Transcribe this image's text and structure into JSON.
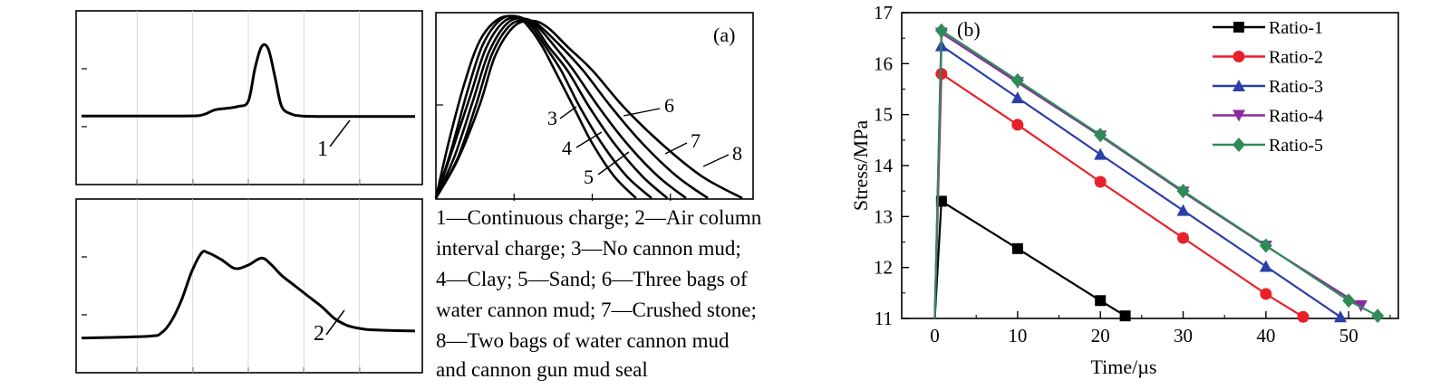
{
  "chart_data": [
    {
      "type": "line",
      "curve_label": "1",
      "xlim": [
        0,
        1
      ],
      "ylim": [
        0,
        1
      ],
      "x": [
        0.0,
        0.3,
        0.36,
        0.4,
        0.44,
        0.47,
        0.5,
        0.52,
        0.54,
        0.56,
        0.58,
        0.6,
        0.63,
        0.66,
        0.7,
        0.8,
        0.9,
        1.0
      ],
      "y": [
        0.395,
        0.395,
        0.4,
        0.43,
        0.44,
        0.45,
        0.48,
        0.67,
        0.795,
        0.78,
        0.62,
        0.45,
        0.405,
        0.395,
        0.392,
        0.392,
        0.392,
        0.392
      ]
    },
    {
      "type": "line",
      "curve_label": "2",
      "xlim": [
        0,
        1
      ],
      "ylim": [
        0,
        1
      ],
      "x": [
        0.0,
        0.2,
        0.24,
        0.27,
        0.3,
        0.33,
        0.36,
        0.38,
        0.42,
        0.46,
        0.5,
        0.54,
        0.57,
        0.6,
        0.64,
        0.68,
        0.72,
        0.76,
        0.8,
        0.85,
        0.9,
        1.0
      ],
      "y": [
        0.2,
        0.21,
        0.23,
        0.3,
        0.42,
        0.58,
        0.69,
        0.69,
        0.65,
        0.6,
        0.62,
        0.66,
        0.62,
        0.56,
        0.5,
        0.44,
        0.38,
        0.31,
        0.27,
        0.25,
        0.245,
        0.24
      ]
    },
    {
      "type": "line",
      "panel_label": "(a)",
      "xlim": [
        0,
        1
      ],
      "ylim": [
        0,
        1
      ],
      "series": [
        {
          "name": "3",
          "x": [
            0.0,
            0.04,
            0.09,
            0.14,
            0.2,
            0.26,
            0.3,
            0.34,
            0.38,
            0.44,
            0.5,
            0.57,
            0.64
          ],
          "y": [
            0.0,
            0.3,
            0.62,
            0.86,
            0.98,
            0.99,
            0.93,
            0.83,
            0.7,
            0.5,
            0.3,
            0.12,
            0.0
          ]
        },
        {
          "name": "4",
          "x": [
            0.0,
            0.05,
            0.1,
            0.15,
            0.21,
            0.27,
            0.31,
            0.35,
            0.4,
            0.46,
            0.53,
            0.61,
            0.69
          ],
          "y": [
            0.0,
            0.27,
            0.58,
            0.84,
            0.98,
            0.99,
            0.93,
            0.83,
            0.7,
            0.5,
            0.3,
            0.12,
            0.0
          ]
        },
        {
          "name": "5",
          "x": [
            0.0,
            0.05,
            0.11,
            0.16,
            0.22,
            0.28,
            0.32,
            0.36,
            0.42,
            0.49,
            0.57,
            0.66,
            0.74
          ],
          "y": [
            0.0,
            0.25,
            0.56,
            0.82,
            0.97,
            0.98,
            0.93,
            0.83,
            0.7,
            0.5,
            0.3,
            0.12,
            0.0
          ]
        },
        {
          "name": "6",
          "x": [
            0.0,
            0.06,
            0.12,
            0.17,
            0.23,
            0.29,
            0.33,
            0.38,
            0.44,
            0.52,
            0.61,
            0.71,
            0.8
          ],
          "y": [
            0.0,
            0.23,
            0.54,
            0.8,
            0.96,
            0.98,
            0.93,
            0.83,
            0.7,
            0.5,
            0.3,
            0.12,
            0.0
          ]
        },
        {
          "name": "7",
          "x": [
            0.0,
            0.07,
            0.13,
            0.18,
            0.24,
            0.3,
            0.34,
            0.4,
            0.47,
            0.56,
            0.66,
            0.77,
            0.87
          ],
          "y": [
            0.0,
            0.22,
            0.52,
            0.79,
            0.95,
            0.97,
            0.93,
            0.83,
            0.7,
            0.5,
            0.3,
            0.12,
            0.0
          ]
        },
        {
          "name": "8",
          "x": [
            0.0,
            0.07,
            0.14,
            0.19,
            0.25,
            0.31,
            0.36,
            0.42,
            0.5,
            0.6,
            0.72,
            0.85,
            0.98
          ],
          "y": [
            0.0,
            0.21,
            0.51,
            0.78,
            0.94,
            0.97,
            0.93,
            0.83,
            0.7,
            0.5,
            0.3,
            0.12,
            0.0
          ]
        }
      ]
    },
    {
      "type": "line",
      "panel_label": "(b)",
      "xlabel": "Time/µs",
      "ylabel": "Stress/MPa",
      "xlim": [
        -4,
        56
      ],
      "ylim": [
        11,
        17
      ],
      "xticks": [
        0,
        10,
        20,
        30,
        40,
        50
      ],
      "yticks": [
        11,
        12,
        13,
        14,
        15,
        16,
        17
      ],
      "grid": false,
      "legend": "top-right",
      "series": [
        {
          "name": "Ratio-1",
          "color": "#000000",
          "marker": "square",
          "x": [
            0,
            0.8,
            10,
            20,
            23
          ],
          "y": [
            11,
            13.3,
            12.37,
            11.35,
            11.05
          ]
        },
        {
          "name": "Ratio-2",
          "color": "#e8202a",
          "marker": "circle",
          "x": [
            0,
            0.8,
            10,
            20,
            30,
            40,
            44.5
          ],
          "y": [
            11,
            15.8,
            14.8,
            13.68,
            12.58,
            11.48,
            11.03
          ]
        },
        {
          "name": "Ratio-3",
          "color": "#2b3fa8",
          "marker": "triangle",
          "x": [
            0,
            0.8,
            10,
            20,
            30,
            40,
            49
          ],
          "y": [
            11,
            16.35,
            15.33,
            14.22,
            13.12,
            12.02,
            11.03
          ]
        },
        {
          "name": "Ratio-4",
          "color": "#8b2a9e",
          "marker": "triangle-down",
          "x": [
            0,
            0.8,
            10,
            20,
            30,
            40,
            51.5
          ],
          "y": [
            11,
            16.6,
            15.63,
            14.58,
            13.48,
            12.42,
            11.25
          ]
        },
        {
          "name": "Ratio-5",
          "color": "#2e8b57",
          "marker": "diamond",
          "x": [
            0,
            0.8,
            10,
            20,
            30,
            40,
            50,
            53.5
          ],
          "y": [
            11,
            16.65,
            15.67,
            14.6,
            13.5,
            12.43,
            11.35,
            11.05
          ]
        }
      ]
    }
  ],
  "caption": {
    "lines": [
      "1—Continuous charge; 2—Air column",
      "interval charge; 3—No cannon mud;",
      "4—Clay; 5—Sand; 6—Three bags of",
      "water cannon mud; 7—Crushed stone;",
      "8—Two bags of water cannon mud",
      "and cannon gun mud seal"
    ]
  }
}
